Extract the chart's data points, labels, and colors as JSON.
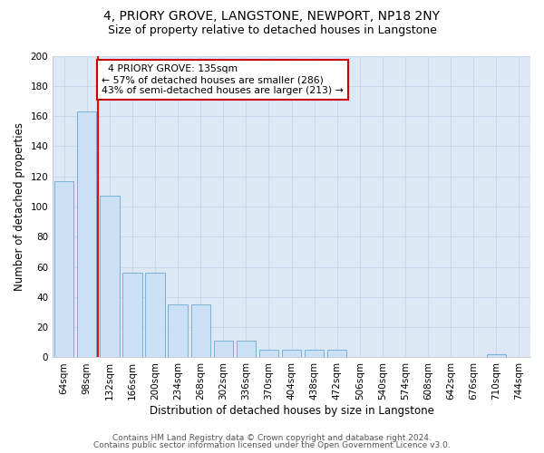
{
  "title1": "4, PRIORY GROVE, LANGSTONE, NEWPORT, NP18 2NY",
  "title2": "Size of property relative to detached houses in Langstone",
  "xlabel": "Distribution of detached houses by size in Langstone",
  "ylabel": "Number of detached properties",
  "categories": [
    "64sqm",
    "98sqm",
    "132sqm",
    "166sqm",
    "200sqm",
    "234sqm",
    "268sqm",
    "302sqm",
    "336sqm",
    "370sqm",
    "404sqm",
    "438sqm",
    "472sqm",
    "506sqm",
    "540sqm",
    "574sqm",
    "608sqm",
    "642sqm",
    "676sqm",
    "710sqm",
    "744sqm"
  ],
  "values": [
    117,
    163,
    107,
    56,
    56,
    35,
    35,
    11,
    11,
    5,
    5,
    5,
    5,
    0,
    0,
    0,
    0,
    0,
    0,
    2,
    0
  ],
  "bar_color": "#cce0f5",
  "bar_edge_color": "#7ab0d8",
  "red_line_index": 1.5,
  "ylim": [
    0,
    200
  ],
  "yticks": [
    0,
    20,
    40,
    60,
    80,
    100,
    120,
    140,
    160,
    180,
    200
  ],
  "annotation_text": "  4 PRIORY GROVE: 135sqm\n← 57% of detached houses are smaller (286)\n43% of semi-detached houses are larger (213) →",
  "annotation_box_color": "#ffffff",
  "annotation_box_edge": "#cc0000",
  "footer1": "Contains HM Land Registry data © Crown copyright and database right 2024.",
  "footer2": "Contains public sector information licensed under the Open Government Licence v3.0.",
  "bg_color": "#dde8f5",
  "fig_bg_color": "#ffffff",
  "title1_fontsize": 10,
  "title2_fontsize": 9,
  "axis_label_fontsize": 8.5,
  "tick_fontsize": 7.5,
  "footer_fontsize": 6.5
}
